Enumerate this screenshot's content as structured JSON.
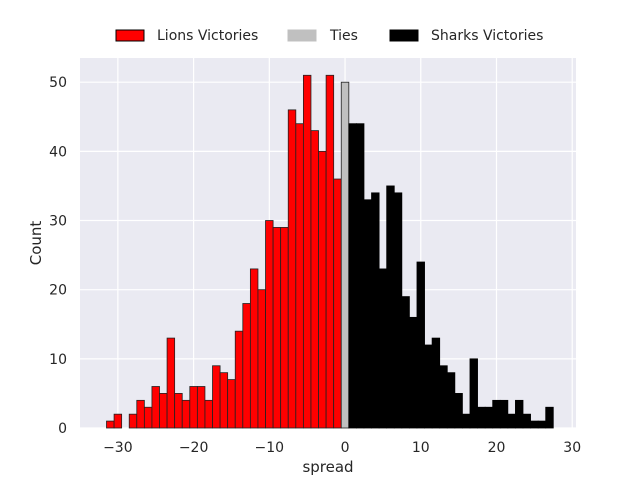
{
  "chart_data": {
    "type": "bar",
    "xlabel": "spread",
    "ylabel": "Count",
    "xlim": [
      -35,
      30.5
    ],
    "ylim": [
      0,
      53.5
    ],
    "xticks": [
      -30,
      -20,
      -10,
      0,
      10,
      20,
      30
    ],
    "yticks": [
      0,
      10,
      20,
      30,
      40,
      50
    ],
    "x_tick_labels": [
      "−30",
      "−20",
      "−10",
      "0",
      "10",
      "20",
      "30"
    ],
    "y_tick_labels": [
      "0",
      "10",
      "20",
      "30",
      "40",
      "50"
    ],
    "grid": true,
    "legend_placement": "top-center",
    "series": [
      {
        "name": "Lions Victories",
        "color": "#ff0000",
        "x": [
          -31,
          -30,
          -28,
          -27,
          -26,
          -25,
          -24,
          -23,
          -22,
          -21,
          -20,
          -19,
          -18,
          -17,
          -16,
          -15,
          -14,
          -13,
          -12,
          -11,
          -10,
          -9,
          -8,
          -7,
          -6,
          -5,
          -4,
          -3,
          -2,
          -1
        ],
        "values": [
          1,
          2,
          2,
          4,
          3,
          6,
          5,
          13,
          5,
          4,
          6,
          6,
          4,
          9,
          8,
          7,
          14,
          18,
          23,
          20,
          30,
          29,
          29,
          46,
          44,
          51,
          43,
          40,
          51,
          36
        ]
      },
      {
        "name": "Ties",
        "color": "#c0c0c0",
        "x": [
          0
        ],
        "values": [
          50
        ]
      },
      {
        "name": "Sharks Victories",
        "color": "#000000",
        "x": [
          1,
          2,
          3,
          4,
          5,
          6,
          7,
          8,
          9,
          10,
          11,
          12,
          13,
          14,
          15,
          16,
          17,
          18,
          19,
          20,
          21,
          22,
          23,
          24,
          25,
          26,
          27
        ],
        "values": [
          44,
          44,
          33,
          34,
          23,
          35,
          34,
          19,
          16,
          24,
          12,
          13,
          9,
          8,
          5,
          2,
          10,
          3,
          3,
          4,
          4,
          2,
          4,
          2,
          1,
          1,
          3
        ]
      }
    ]
  }
}
